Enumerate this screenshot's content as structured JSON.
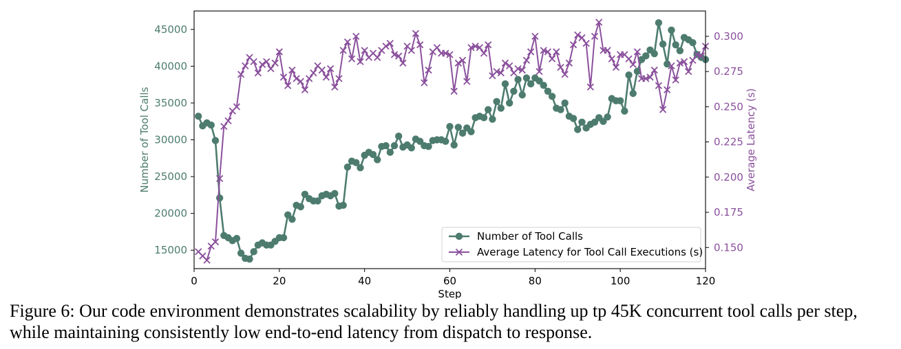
{
  "colors": {
    "calls": "#4d7c6f",
    "latency": "#8a509c",
    "axis": "#000000"
  },
  "caption": "Figure 6: Our code environment demonstrates scalability by reliably handling up tp 45K concurrent tool calls per step, while maintaining consistently low end-to-end latency from dispatch to response.",
  "chart_data": {
    "type": "line",
    "xlabel": "Step",
    "ylabel_left": "Number of Tool Calls",
    "ylabel_right": "Average Latency (s)",
    "xlim": [
      0,
      120
    ],
    "ylim_left": [
      12500,
      47500
    ],
    "ylim_right": [
      0.135,
      0.318
    ],
    "xticks": [
      0,
      20,
      40,
      60,
      80,
      100,
      120
    ],
    "yticks_left": [
      15000,
      20000,
      25000,
      30000,
      35000,
      40000,
      45000
    ],
    "yticks_right": [
      0.15,
      0.175,
      0.2,
      0.225,
      0.25,
      0.275,
      0.3
    ],
    "ytick_labels_right": [
      "0.150",
      "0.175",
      "0.200",
      "0.225",
      "0.250",
      "0.275",
      "0.300"
    ],
    "legend_position": "lower-right",
    "grid": false,
    "series": [
      {
        "name": "Number of Tool Calls",
        "axis": "left",
        "marker": "circle",
        "x": [
          1,
          2,
          3,
          4,
          5,
          6,
          7,
          8,
          9,
          10,
          11,
          12,
          13,
          14,
          15,
          16,
          17,
          18,
          19,
          20,
          21,
          22,
          23,
          24,
          25,
          26,
          27,
          28,
          29,
          30,
          31,
          32,
          33,
          34,
          35,
          36,
          37,
          38,
          39,
          40,
          41,
          42,
          43,
          44,
          45,
          46,
          47,
          48,
          49,
          50,
          51,
          52,
          53,
          54,
          55,
          56,
          57,
          58,
          59,
          60,
          61,
          62,
          63,
          64,
          65,
          66,
          67,
          68,
          69,
          70,
          71,
          72,
          73,
          74,
          75,
          76,
          77,
          78,
          79,
          80,
          81,
          82,
          83,
          84,
          85,
          86,
          87,
          88,
          89,
          90,
          91,
          92,
          93,
          94,
          95,
          96,
          97,
          98,
          99,
          100,
          101,
          102,
          103,
          104,
          105,
          106,
          107,
          108,
          109,
          110,
          111,
          112,
          113,
          114,
          115,
          116,
          117,
          118,
          119,
          120
        ],
        "y": [
          33200,
          31900,
          32300,
          32000,
          29900,
          22100,
          17000,
          16700,
          16300,
          16600,
          14600,
          13900,
          13800,
          14800,
          15700,
          16000,
          15700,
          15700,
          16200,
          16700,
          16700,
          19800,
          19200,
          21100,
          20900,
          22600,
          22000,
          21700,
          21700,
          22400,
          22600,
          22400,
          22700,
          21000,
          21100,
          26300,
          27100,
          26900,
          26200,
          27900,
          28300,
          28000,
          27300,
          29100,
          29200,
          28300,
          29200,
          30500,
          29000,
          29300,
          28900,
          30100,
          29800,
          29200,
          29100,
          29900,
          30000,
          30000,
          29800,
          31800,
          29300,
          31700,
          30900,
          31600,
          31100,
          33000,
          33200,
          33000,
          34100,
          32800,
          35200,
          34300,
          37600,
          35000,
          36600,
          38200,
          36100,
          38400,
          37600,
          38400,
          38000,
          37400,
          36600,
          35900,
          34300,
          34100,
          35000,
          33200,
          32900,
          31400,
          32400,
          31600,
          32100,
          32400,
          33000,
          32500,
          33100,
          35600,
          35300,
          35300,
          33900,
          38800,
          36300,
          39300,
          40900,
          41400,
          42200,
          41700,
          45900,
          43000,
          40300,
          44900,
          42900,
          42100,
          43900,
          43600,
          43200,
          41600,
          41200,
          40900
        ],
        "style": "line-dot"
      },
      {
        "name": "Average Latency for Tool Call Executions (s)",
        "axis": "right",
        "marker": "x",
        "x": [
          1,
          2,
          3,
          4,
          5,
          6,
          7,
          8,
          9,
          10,
          11,
          12,
          13,
          14,
          15,
          16,
          17,
          18,
          19,
          20,
          21,
          22,
          23,
          24,
          25,
          26,
          27,
          28,
          29,
          30,
          31,
          32,
          33,
          34,
          35,
          36,
          37,
          38,
          39,
          40,
          41,
          42,
          43,
          44,
          45,
          46,
          47,
          48,
          49,
          50,
          51,
          52,
          53,
          54,
          55,
          56,
          57,
          58,
          59,
          60,
          61,
          62,
          63,
          64,
          65,
          66,
          67,
          68,
          69,
          70,
          71,
          72,
          73,
          74,
          75,
          76,
          77,
          78,
          79,
          80,
          81,
          82,
          83,
          84,
          85,
          86,
          87,
          88,
          89,
          90,
          91,
          92,
          93,
          94,
          95,
          96,
          97,
          98,
          99,
          100,
          101,
          102,
          103,
          104,
          105,
          106,
          107,
          108,
          109,
          110,
          111,
          112,
          113,
          114,
          115,
          116,
          117,
          118,
          119,
          120
        ],
        "y": [
          0.147,
          0.144,
          0.141,
          0.151,
          0.154,
          0.199,
          0.236,
          0.24,
          0.247,
          0.25,
          0.273,
          0.279,
          0.285,
          0.282,
          0.274,
          0.28,
          0.282,
          0.277,
          0.281,
          0.289,
          0.271,
          0.265,
          0.276,
          0.27,
          0.268,
          0.262,
          0.27,
          0.274,
          0.279,
          0.276,
          0.271,
          0.277,
          0.264,
          0.27,
          0.29,
          0.296,
          0.284,
          0.3,
          0.282,
          0.29,
          0.285,
          0.288,
          0.285,
          0.29,
          0.293,
          0.295,
          0.287,
          0.286,
          0.281,
          0.293,
          0.29,
          0.302,
          0.294,
          0.267,
          0.276,
          0.289,
          0.292,
          0.288,
          0.288,
          0.287,
          0.261,
          0.281,
          0.283,
          0.268,
          0.292,
          0.293,
          0.292,
          0.288,
          0.294,
          0.272,
          0.275,
          0.274,
          0.281,
          0.279,
          0.274,
          0.277,
          0.276,
          0.283,
          0.289,
          0.3,
          0.275,
          0.29,
          0.289,
          0.284,
          0.289,
          0.278,
          0.273,
          0.281,
          0.294,
          0.301,
          0.299,
          0.295,
          0.264,
          0.3,
          0.31,
          0.29,
          0.29,
          0.284,
          0.278,
          0.287,
          0.287,
          0.284,
          0.28,
          0.289,
          0.27,
          0.27,
          0.271,
          0.276,
          0.265,
          0.248,
          0.262,
          0.279,
          0.269,
          0.281,
          0.282,
          0.275,
          0.283,
          0.287,
          0.286,
          0.293
        ],
        "style": "line-x"
      }
    ]
  }
}
